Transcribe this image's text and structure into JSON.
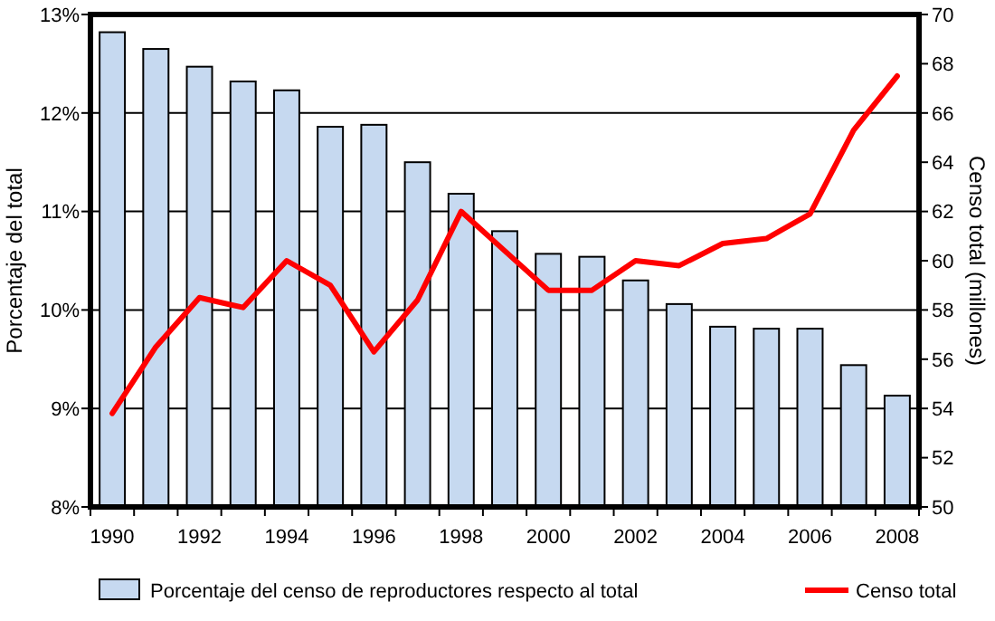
{
  "chart_data": {
    "type": "bar",
    "categories": [
      "1990",
      null,
      "1992",
      null,
      "1994",
      null,
      "1996",
      null,
      "1998",
      null,
      "2000",
      null,
      "2002",
      null,
      "2004",
      null,
      "2006",
      null,
      "2008"
    ],
    "ylabel": "Porcentaje del total",
    "y2label": "Censo total (millones)",
    "ylim": [
      8,
      13
    ],
    "yticks": [
      {
        "value": 8,
        "label": "8%"
      },
      {
        "value": 9,
        "label": "9%"
      },
      {
        "value": 10,
        "label": "10%"
      },
      {
        "value": 11,
        "label": "11%"
      },
      {
        "value": 12,
        "label": "12%"
      },
      {
        "value": 13,
        "label": "13%"
      }
    ],
    "y2lim": [
      50,
      70
    ],
    "y2ticks": [
      50,
      52,
      54,
      56,
      58,
      60,
      62,
      64,
      66,
      68,
      70
    ],
    "grid": "y",
    "legend": "bottom",
    "series": [
      {
        "name": "Porcentaje del censo de reproductores respecto al total",
        "color": "#c6d9f0",
        "values": [
          12.82,
          12.65,
          12.47,
          12.32,
          12.23,
          11.86,
          11.88,
          11.5,
          11.18,
          10.8,
          10.57,
          10.54,
          10.3,
          10.06,
          9.83,
          9.81,
          9.81,
          9.44,
          9.13
        ]
      },
      {
        "name": "Censo total",
        "type": "line",
        "axis": "y2",
        "color": "#ff0000",
        "values": [
          53.8,
          56.5,
          58.5,
          58.1,
          60.0,
          59.0,
          56.3,
          58.4,
          62.0,
          60.4,
          58.8,
          58.8,
          60.0,
          59.8,
          60.7,
          60.9,
          61.9,
          65.3,
          67.5
        ]
      }
    ]
  }
}
